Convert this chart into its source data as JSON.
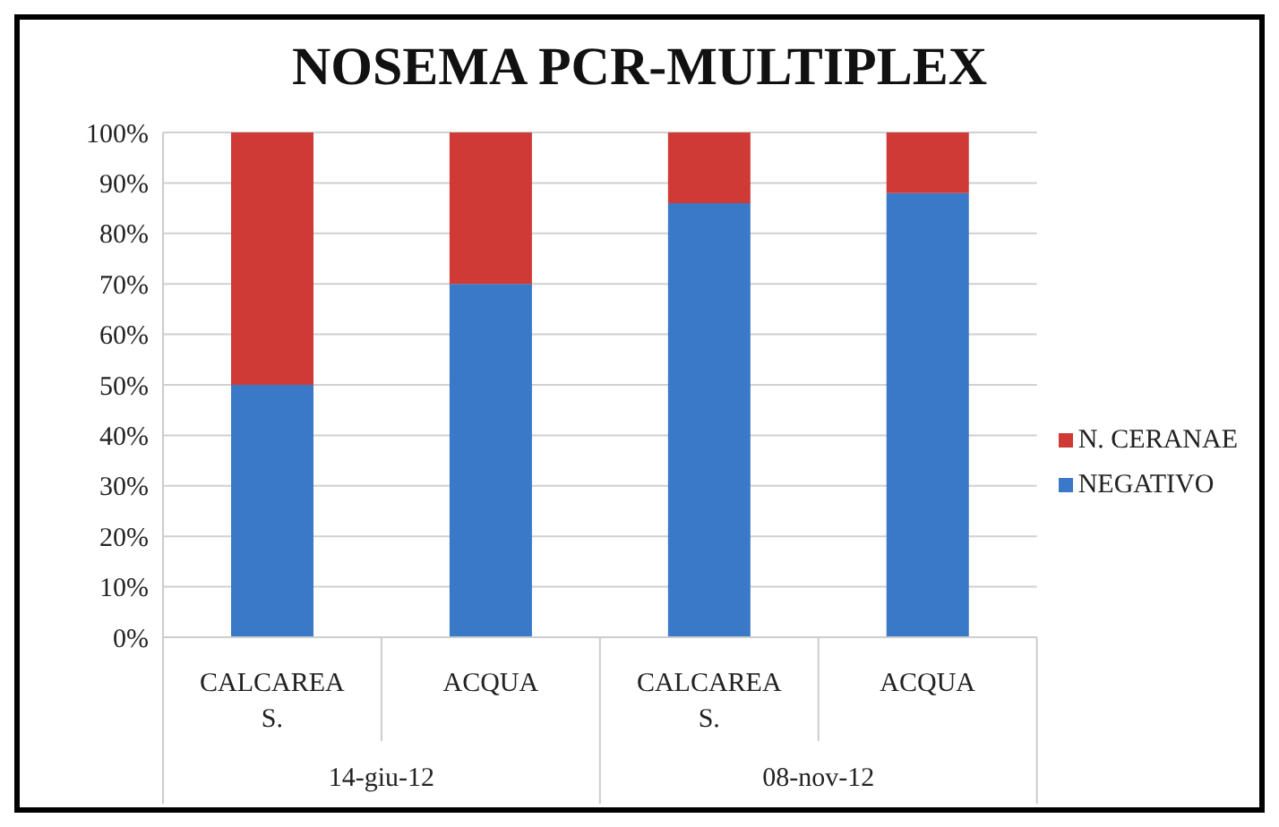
{
  "chart_data": {
    "type": "bar",
    "title": "NOSEMA PCR-MULTIPLEX",
    "stacked": true,
    "categories": [
      "CALCAREA S.",
      "ACQUA",
      "CALCAREA S.",
      "ACQUA"
    ],
    "series": [
      {
        "name": "NEGATIVO",
        "color": "#3a78c8",
        "values": [
          50,
          70,
          86,
          88
        ]
      },
      {
        "name": "N. CERANAE",
        "color": "#d03a36",
        "values": [
          50,
          30,
          14,
          12
        ]
      }
    ],
    "annotations": [
      "14-giu-12",
      "08-nov-12"
    ],
    "ylim": [
      0,
      100
    ],
    "yticks": [
      {
        "value": 0,
        "label": "0%"
      },
      {
        "value": 10,
        "label": "10%"
      },
      {
        "value": 20,
        "label": "20%"
      },
      {
        "value": 30,
        "label": "30%"
      },
      {
        "value": 40,
        "label": "40%"
      },
      {
        "value": 50,
        "label": "50%"
      },
      {
        "value": 60,
        "label": "60%"
      },
      {
        "value": 70,
        "label": "70%"
      },
      {
        "value": 80,
        "label": "80%"
      },
      {
        "value": 90,
        "label": "90%"
      },
      {
        "value": 100,
        "label": "100%"
      }
    ],
    "grid": "y",
    "legend": "right"
  }
}
